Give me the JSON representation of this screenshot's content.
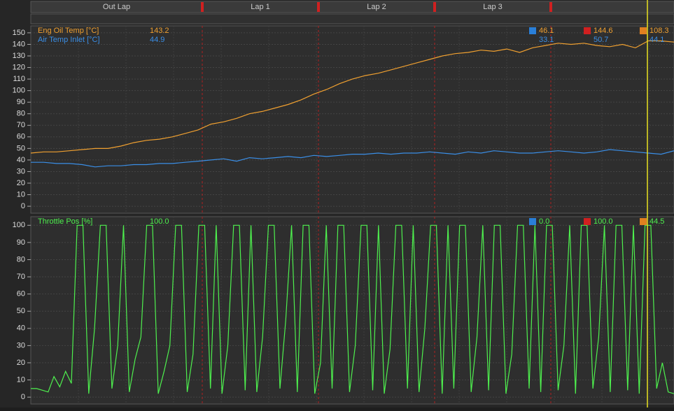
{
  "laps": [
    "Out Lap",
    "Lap 1",
    "Lap 2",
    "Lap 3"
  ],
  "chart_data": [
    {
      "type": "line",
      "ylim": [
        -6,
        156
      ],
      "yticks": [
        0,
        10,
        20,
        30,
        40,
        50,
        60,
        70,
        80,
        90,
        100,
        110,
        120,
        130,
        140,
        150
      ],
      "grid": true,
      "series": [
        {
          "name": "Eng Oil Temp [°C]",
          "color": "#f0a030",
          "cursor": "143.2",
          "min": "46.1",
          "max": "144.6",
          "avg": "108.3",
          "values": [
            46,
            47,
            47,
            48,
            49,
            50,
            50,
            52,
            55,
            57,
            58,
            60,
            63,
            66,
            71,
            73,
            76,
            80,
            82,
            85,
            88,
            92,
            97,
            101,
            106,
            110,
            113,
            115,
            118,
            121,
            124,
            127,
            130,
            132,
            133,
            135,
            134,
            136,
            133,
            137,
            139,
            141,
            140,
            141,
            139,
            138,
            140,
            137,
            143,
            143,
            142
          ]
        },
        {
          "name": "Air Temp Inlet [°C]",
          "color": "#3a8ee6",
          "cursor": "44.9",
          "min": "33.1",
          "max": "50.7",
          "avg": "44.1",
          "values": [
            38,
            38,
            37,
            37,
            36,
            34,
            35,
            35,
            36,
            36,
            37,
            37,
            38,
            39,
            40,
            41,
            39,
            42,
            41,
            42,
            43,
            42,
            44,
            43,
            44,
            45,
            45,
            46,
            45,
            46,
            46,
            47,
            46,
            45,
            47,
            46,
            48,
            47,
            46,
            46,
            47,
            48,
            47,
            46,
            47,
            49,
            48,
            47,
            46,
            45,
            48
          ]
        }
      ]
    },
    {
      "type": "line",
      "ylim": [
        -4,
        105
      ],
      "yticks": [
        0,
        10,
        20,
        30,
        40,
        50,
        60,
        70,
        80,
        90,
        100
      ],
      "grid": true,
      "series": [
        {
          "name": "Throttle Pos [%]",
          "color": "#4ef04e",
          "cursor": "100.0",
          "min": "0.0",
          "max": "100.0",
          "avg": "44.5",
          "values": [
            5,
            5,
            4,
            3,
            12,
            6,
            15,
            8,
            100,
            100,
            2,
            40,
            100,
            100,
            5,
            30,
            100,
            3,
            22,
            35,
            100,
            100,
            2,
            15,
            30,
            100,
            100,
            3,
            25,
            100,
            100,
            5,
            100,
            2,
            30,
            100,
            100,
            4,
            100,
            3,
            35,
            100,
            100,
            5,
            45,
            100,
            3,
            100,
            100,
            2,
            20,
            100,
            5,
            100,
            100,
            3,
            30,
            100,
            100,
            4,
            100,
            2,
            28,
            100,
            100,
            5,
            100,
            3,
            40,
            100,
            100,
            2,
            100,
            5,
            100,
            100,
            3,
            35,
            100,
            4,
            100,
            100,
            2,
            25,
            100,
            100,
            5,
            100,
            3,
            100,
            100,
            4,
            30,
            100,
            2,
            100,
            100,
            5,
            35,
            100,
            3,
            100,
            100,
            4,
            100,
            2,
            100,
            100,
            5,
            20,
            3,
            2
          ]
        }
      ]
    }
  ]
}
